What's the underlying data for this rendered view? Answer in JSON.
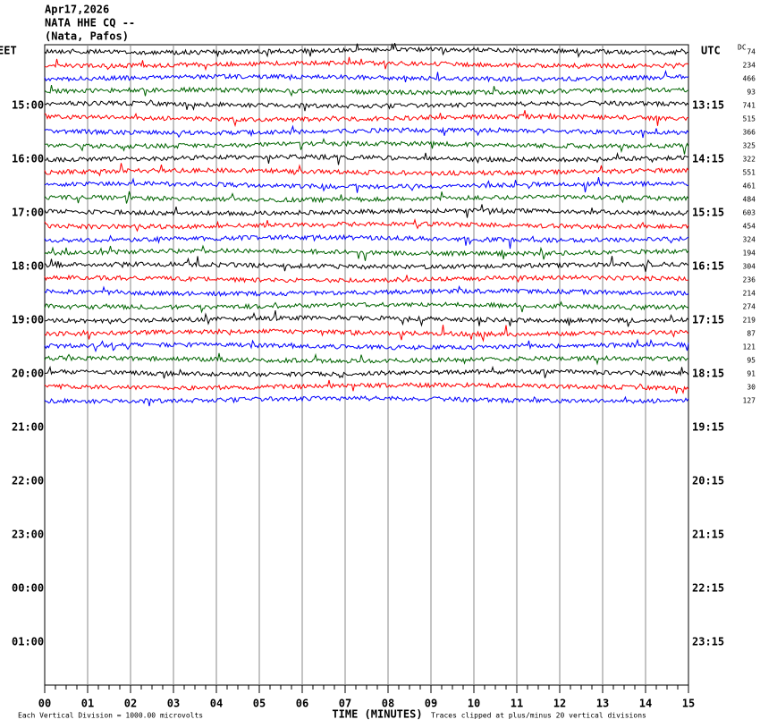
{
  "header": {
    "date": "Apr17,2026",
    "station": "NATA HHE CQ --",
    "location": "(Nata, Pafos)"
  },
  "left_axis": {
    "zone": "EET",
    "labels": [
      "15:00",
      "16:00",
      "17:00",
      "18:00",
      "19:00",
      "20:00",
      "21:00",
      "22:00",
      "23:00",
      "00:00",
      "01:00"
    ]
  },
  "right_axis": {
    "zone": "UTC",
    "labels": [
      "13:15",
      "14:15",
      "15:15",
      "16:15",
      "17:15",
      "18:15",
      "19:15",
      "20:15",
      "21:15",
      "22:15",
      "23:15"
    ]
  },
  "dc": {
    "title": "DC",
    "values": [
      74,
      234,
      466,
      93,
      741,
      515,
      366,
      325,
      322,
      551,
      461,
      484,
      603,
      454,
      324,
      194,
      304,
      236,
      214,
      274,
      219,
      87,
      121,
      95,
      91,
      30,
      127
    ]
  },
  "trace_colors": [
    "#000000",
    "#ff0000",
    "#0000ff",
    "#006400"
  ],
  "x_axis": {
    "labels": [
      "00",
      "01",
      "02",
      "03",
      "04",
      "05",
      "06",
      "07",
      "08",
      "09",
      "10",
      "11",
      "12",
      "13",
      "14",
      "15"
    ],
    "title": "TIME (MINUTES)"
  },
  "footer": {
    "scale": "Each Vertical Division = 1000.00 microvolts",
    "clip": "Traces clipped at plus/minus 20 vertical divisions"
  }
}
